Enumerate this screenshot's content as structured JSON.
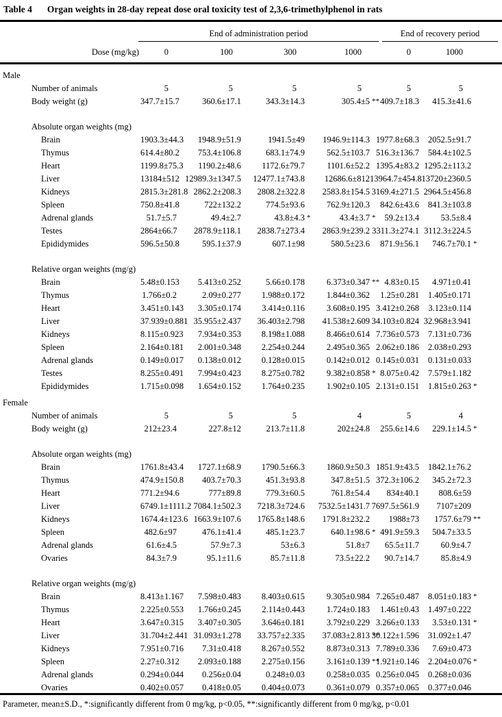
{
  "table": {
    "label": "Table 4",
    "caption": "Organ weights in 28-day repeat dose oral toxicity test of 2,3,6-trimethylphenol in rats",
    "col_groups": [
      {
        "label": "End of administration period",
        "span": 4
      },
      {
        "label": "End of recovery period",
        "span": 2
      }
    ],
    "dose_label": "Dose (mg/kg)",
    "doses": [
      "0",
      "100",
      "300",
      "1000",
      "0",
      "1000"
    ],
    "sections": [
      {
        "label": "Male",
        "blocks": [
          {
            "rows": [
              {
                "label": "Number of animals",
                "values": [
                  "5",
                  "5",
                  "5",
                  "5",
                  "5",
                  "5"
                ]
              },
              {
                "label": "Body weight (g)",
                "values": [
                  "347.7±15.7",
                  "360.6±17.1",
                  "343.3±14.3",
                  "305.4±5 **",
                  "409.7±18.3",
                  "415.3±41.6"
                ]
              }
            ]
          },
          {
            "header": "Absolute organ weights (mg)",
            "rows": [
              {
                "label": "Brain",
                "values": [
                  "1903.3±44.3",
                  "1948.9±51.9",
                  "1941.5±49",
                  "1946.9±114.3",
                  "1977.8±68.3",
                  "2052.5±91.7"
                ]
              },
              {
                "label": "Thymus",
                "values": [
                  "614.4±80.2",
                  "753.4±106.8",
                  "683.1±74.9",
                  "562.5±103.7",
                  "516.3±136.7",
                  "584.4±102.5"
                ]
              },
              {
                "label": "Heart",
                "values": [
                  "1199.8±75.3",
                  "1190.2±48.6",
                  "1172.6±79.7",
                  "1101.6±52.2",
                  "1395.4±83.2",
                  "1295.2±113.2"
                ]
              },
              {
                "label": "Liver",
                "values": [
                  "13184±512",
                  "12989.3±1347.5",
                  "12477.1±743.8",
                  "12686.6±812",
                  "13964.7±454.8",
                  "13720±2360.5"
                ]
              },
              {
                "label": "Kidneys",
                "values": [
                  "2815.3±281.8",
                  "2862.2±208.3",
                  "2808.2±322.8",
                  "2583.8±154.5",
                  "3169.4±271.5",
                  "2964.5±456.8"
                ]
              },
              {
                "label": "Spleen",
                "values": [
                  "750.8±41.8",
                  "722±132.2",
                  "774.5±93.6",
                  "762.9±120.3",
                  "842.6±43.6",
                  "841.3±103.8"
                ]
              },
              {
                "label": "Adrenal glands",
                "values": [
                  "51.7±5.7",
                  "49.4±2.7",
                  "43.8±4.3 *",
                  "43.4±3.7 *",
                  "59.2±13.4",
                  "53.5±8.4"
                ]
              },
              {
                "label": "Testes",
                "values": [
                  "2864±66.7",
                  "2878.9±118.1",
                  "2838.7±273.4",
                  "2863.9±239.2",
                  "3311.3±274.1",
                  "3112.3±224.5"
                ]
              },
              {
                "label": "Epididymides",
                "values": [
                  "596.5±50.8",
                  "595.1±37.9",
                  "607.1±98",
                  "580.5±23.6",
                  "871.9±56.1",
                  "746.7±70.1 *"
                ]
              }
            ]
          },
          {
            "header": "Relative organ weights (mg/g)",
            "rows": [
              {
                "label": "Brain",
                "values": [
                  "5.48±0.153",
                  "5.413±0.252",
                  "5.66±0.178",
                  "6.373±0.347 **",
                  "4.83±0.15",
                  "4.971±0.41"
                ]
              },
              {
                "label": "Thymus",
                "values": [
                  "1.766±0.2",
                  "2.09±0.277",
                  "1.988±0.172",
                  "1.844±0.362",
                  "1.25±0.281",
                  "1.405±0.171"
                ]
              },
              {
                "label": "Heart",
                "values": [
                  "3.451±0.143",
                  "3.305±0.174",
                  "3.414±0.116",
                  "3.608±0.195",
                  "3.412±0.268",
                  "3.123±0.114"
                ]
              },
              {
                "label": "Liver",
                "values": [
                  "37.939±0.881",
                  "35.955±2.437",
                  "36.403±2.798",
                  "41.538±2.609",
                  "34.103±0.824",
                  "32.968±3.941"
                ]
              },
              {
                "label": "Kidneys",
                "values": [
                  "8.115±0.923",
                  "7.934±0.353",
                  "8.198±1.088",
                  "8.466±0.614",
                  "7.736±0.573",
                  "7.131±0.736"
                ]
              },
              {
                "label": "Spleen",
                "values": [
                  "2.164±0.181",
                  "2.001±0.348",
                  "2.254±0.244",
                  "2.495±0.365",
                  "2.062±0.186",
                  "2.038±0.293"
                ]
              },
              {
                "label": "Adrenal glands",
                "values": [
                  "0.149±0.017",
                  "0.138±0.012",
                  "0.128±0.015",
                  "0.142±0.012",
                  "0.145±0.031",
                  "0.131±0.033"
                ]
              },
              {
                "label": "Testes",
                "values": [
                  "8.255±0.491",
                  "7.994±0.423",
                  "8.275±0.782",
                  "9.382±0.858 *",
                  "8.075±0.42",
                  "7.579±1.182"
                ]
              },
              {
                "label": "Epididymides",
                "values": [
                  "1.715±0.098",
                  "1.654±0.152",
                  "1.764±0.235",
                  "1.902±0.105",
                  "2.131±0.151",
                  "1.815±0.263 *"
                ]
              }
            ]
          }
        ]
      },
      {
        "label": "Female",
        "blocks": [
          {
            "rows": [
              {
                "label": "Number of animals",
                "values": [
                  "5",
                  "5",
                  "5",
                  "4",
                  "5",
                  "4"
                ]
              },
              {
                "label": "Body weight (g)",
                "values": [
                  "212±23.4",
                  "227.8±12",
                  "213.7±11.8",
                  "202±24.8",
                  "255.6±14.6",
                  "229.1±14.5 *"
                ]
              }
            ]
          },
          {
            "header": "Absolute organ weights (mg)",
            "rows": [
              {
                "label": "Brain",
                "values": [
                  "1761.8±43.4",
                  "1727.1±68.9",
                  "1790.5±66.3",
                  "1860.9±50.3",
                  "1851.9±43.5",
                  "1842.1±76.2"
                ]
              },
              {
                "label": "Thymus",
                "values": [
                  "474.9±150.8",
                  "403.7±70.3",
                  "451.3±93.8",
                  "347.8±51.5",
                  "372.3±106.2",
                  "345.2±72.3"
                ]
              },
              {
                "label": "Heart",
                "values": [
                  "771.2±94.6",
                  "777±89.8",
                  "779.3±60.5",
                  "761.8±54.4",
                  "834±40.1",
                  "808.6±59"
                ]
              },
              {
                "label": "Liver",
                "values": [
                  "6749.1±1111.2",
                  "7084.1±502.3",
                  "7218.3±724.6",
                  "7532.5±1431.7",
                  "7697.5±561.9",
                  "7107±209"
                ]
              },
              {
                "label": "Kidneys",
                "values": [
                  "1674.4±123.6",
                  "1663.9±107.6",
                  "1765.8±148.6",
                  "1791.8±232.2",
                  "1988±73",
                  "1757.6±79 **"
                ]
              },
              {
                "label": "Spleen",
                "values": [
                  "482.6±97",
                  "476.1±41.4",
                  "485.1±23.7",
                  "640.1±98.6 *",
                  "491.9±59.3",
                  "504.7±33.5"
                ]
              },
              {
                "label": "Adrenal glands",
                "values": [
                  "61.6±4.5",
                  "57.9±7.3",
                  "53±6.3",
                  "51.8±7",
                  "65.5±11.7",
                  "60.9±4.7"
                ]
              },
              {
                "label": "Ovaries",
                "values": [
                  "84.3±7.9",
                  "95.1±11.6",
                  "85.7±11.8",
                  "73.5±22.2",
                  "90.7±14.7",
                  "85.8±4.9"
                ]
              }
            ]
          },
          {
            "header": "Relative organ weights (mg/g)",
            "rows": [
              {
                "label": "Brain",
                "values": [
                  "8.413±1.167",
                  "7.598±0.483",
                  "8.403±0.615",
                  "9.305±0.984",
                  "7.265±0.487",
                  "8.051±0.183 *"
                ]
              },
              {
                "label": "Thymus",
                "values": [
                  "2.225±0.553",
                  "1.766±0.245",
                  "2.114±0.443",
                  "1.724±0.183",
                  "1.461±0.43",
                  "1.497±0.222"
                ]
              },
              {
                "label": "Heart",
                "values": [
                  "3.647±0.315",
                  "3.407±0.305",
                  "3.646±0.181",
                  "3.792±0.229",
                  "3.266±0.133",
                  "3.53±0.131 *"
                ]
              },
              {
                "label": "Liver",
                "values": [
                  "31.704±2.441",
                  "31.093±1.278",
                  "33.757±2.335",
                  "37.083±2.813 **",
                  "30.122±1.596",
                  "31.092±1.47"
                ]
              },
              {
                "label": "Kidneys",
                "values": [
                  "7.951±0.716",
                  "7.31±0.418",
                  "8.267±0.552",
                  "8.873±0.313",
                  "7.789±0.336",
                  "7.69±0.473"
                ]
              },
              {
                "label": "Spleen",
                "values": [
                  "2.27±0.312",
                  "2.093±0.188",
                  "2.275±0.156",
                  "3.161±0.139 **",
                  "1.921±0.146",
                  "2.204±0.076 *"
                ]
              },
              {
                "label": "Adrenal glands",
                "values": [
                  "0.294±0.044",
                  "0.256±0.04",
                  "0.248±0.03",
                  "0.258±0.035",
                  "0.256±0.045",
                  "0.268±0.036"
                ]
              },
              {
                "label": "Ovaries",
                "values": [
                  "0.402±0.057",
                  "0.418±0.05",
                  "0.404±0.073",
                  "0.361±0.079",
                  "0.357±0.065",
                  "0.377±0.046"
                ]
              }
            ]
          }
        ]
      }
    ],
    "footnote": "Parameter, mean±S.D., *:significantly different from 0 mg/kg, p<0.05, **:significantly different from 0 mg/kg, p<0.01"
  }
}
